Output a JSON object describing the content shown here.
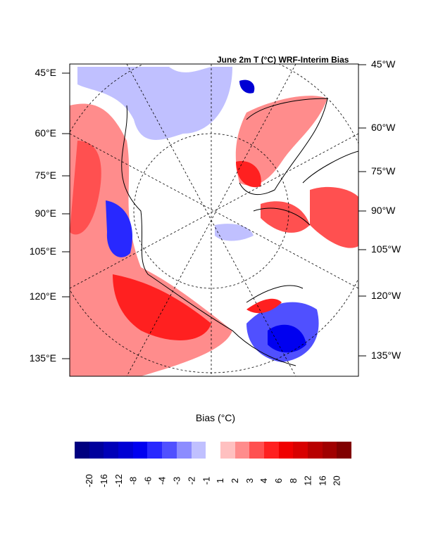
{
  "title": "June 2m T (°C) WRF-Interim Bias",
  "left_labels": [
    "45°E",
    "60°E",
    "75°E",
    "90°E",
    "105°E",
    "120°E",
    "135°E"
  ],
  "right_labels": [
    "45°W",
    "60°W",
    "75°W",
    "90°W",
    "105°W",
    "120°W",
    "135°W"
  ],
  "colorbar": {
    "title": "Bias (°C)",
    "colors": [
      "#000080",
      "#00009c",
      "#0000b8",
      "#0000d4",
      "#0000f0",
      "#2828ff",
      "#5050ff",
      "#8c8cff",
      "#c0c0ff",
      "#ffffff",
      "#ffc0c0",
      "#ff8c8c",
      "#ff5050",
      "#ff2020",
      "#f00000",
      "#d80000",
      "#b80000",
      "#a00000",
      "#800000"
    ],
    "ticks": [
      "-20",
      "-16",
      "-12",
      "-8",
      "-6",
      "-4",
      "-3",
      "-2",
      "-1",
      "1",
      "2",
      "3",
      "4",
      "6",
      "8",
      "12",
      "16",
      "20"
    ]
  }
}
